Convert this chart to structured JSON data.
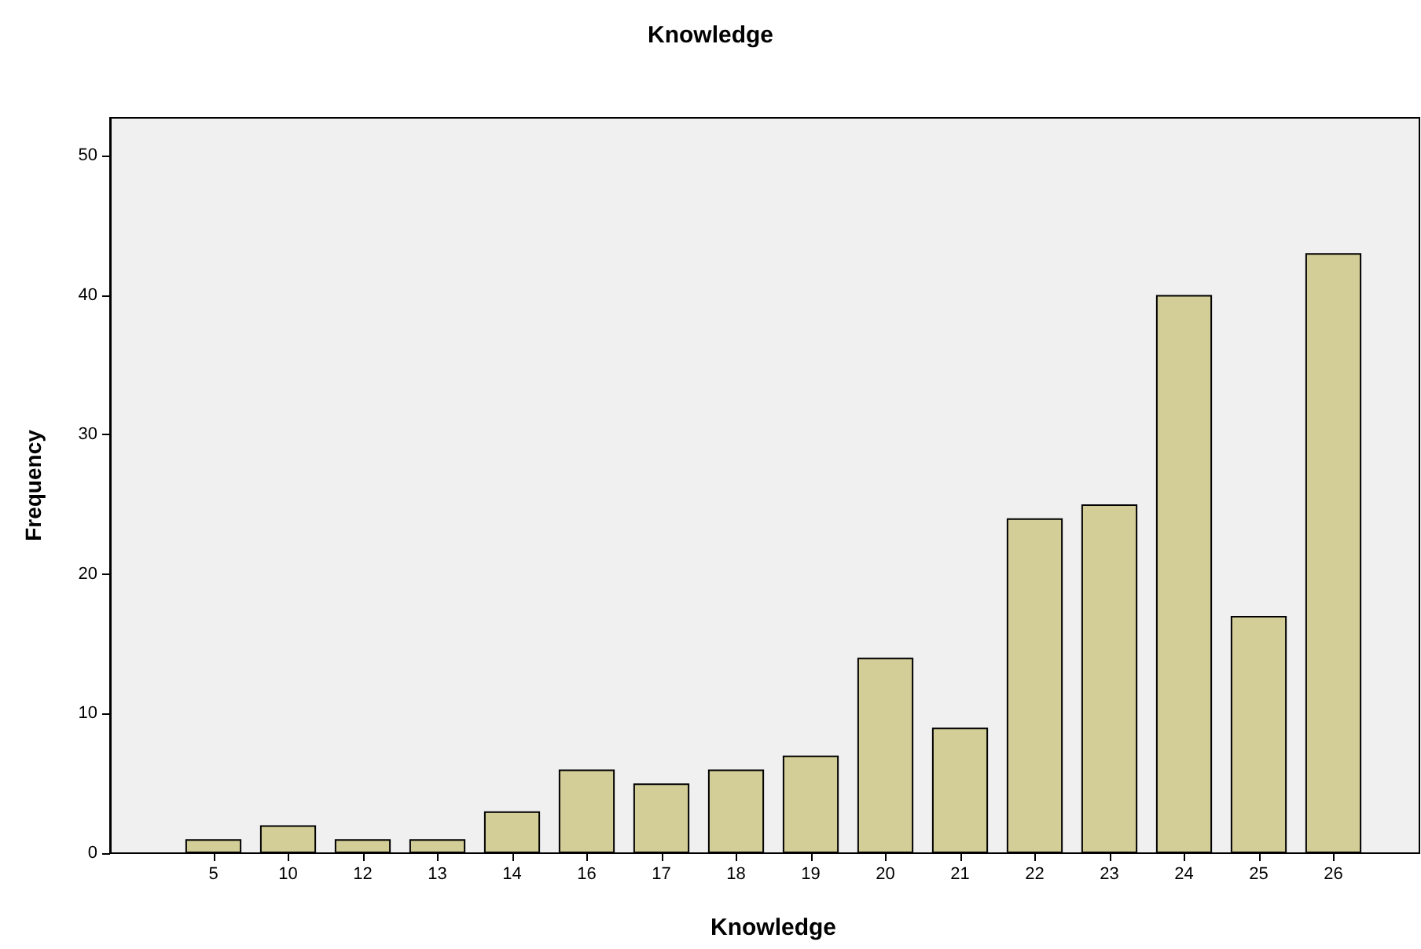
{
  "chart_data": {
    "type": "bar",
    "title": "Knowledge",
    "xlabel": "Knowledge",
    "ylabel": "Frequency",
    "categories": [
      "5",
      "10",
      "12",
      "13",
      "14",
      "16",
      "17",
      "18",
      "19",
      "20",
      "21",
      "22",
      "23",
      "24",
      "25",
      "26"
    ],
    "values": [
      1,
      2,
      1,
      1,
      3,
      6,
      5,
      6,
      7,
      14,
      9,
      24,
      25,
      40,
      17,
      43
    ],
    "color": "#d3ce97",
    "ylim": [
      0,
      52.7
    ],
    "yticks": [
      0,
      10,
      20,
      30,
      40,
      50
    ],
    "grid": false
  }
}
